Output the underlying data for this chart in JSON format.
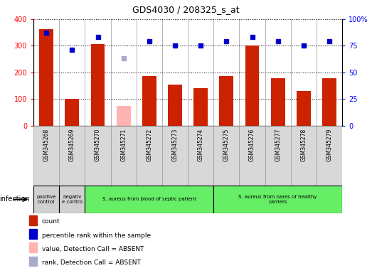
{
  "title": "GDS4030 / 208325_s_at",
  "samples": [
    "GSM345268",
    "GSM345269",
    "GSM345270",
    "GSM345271",
    "GSM345272",
    "GSM345273",
    "GSM345274",
    "GSM345275",
    "GSM345276",
    "GSM345277",
    "GSM345278",
    "GSM345279"
  ],
  "bar_values": [
    362,
    100,
    305,
    null,
    185,
    155,
    140,
    187,
    302,
    178,
    130,
    178
  ],
  "bar_absent_values": [
    null,
    null,
    null,
    75,
    null,
    null,
    null,
    null,
    null,
    null,
    null,
    null
  ],
  "bar_color_present": "#cc2200",
  "bar_color_absent": "#ffb3b3",
  "rank_values": [
    87,
    71,
    83,
    null,
    79,
    75,
    75,
    79,
    83,
    79,
    75,
    79
  ],
  "rank_absent_values": [
    null,
    null,
    null,
    63,
    null,
    null,
    null,
    null,
    null,
    null,
    null,
    null
  ],
  "rank_color_present": "#0000cc",
  "rank_color_absent": "#aaaacc",
  "ylim_left": [
    0,
    400
  ],
  "ylim_right": [
    0,
    100
  ],
  "yticks_left": [
    0,
    100,
    200,
    300,
    400
  ],
  "yticks_right": [
    0,
    25,
    50,
    75,
    100
  ],
  "ytick_labels_right": [
    "0",
    "25",
    "50",
    "75",
    "100%"
  ],
  "groups": [
    {
      "label": "positive\ncontrol",
      "start": 0,
      "end": 1,
      "color": "#d0d0d0"
    },
    {
      "label": "negativ\ne contro",
      "start": 1,
      "end": 2,
      "color": "#d0d0d0"
    },
    {
      "label": "S. aureus from blood of septic patient",
      "start": 2,
      "end": 7,
      "color": "#66ee66"
    },
    {
      "label": "S. aureus from nares of healthy\ncarriers",
      "start": 7,
      "end": 12,
      "color": "#66ee66"
    }
  ],
  "infection_label": "infection",
  "legend_items": [
    {
      "color": "#cc2200",
      "label": "count",
      "marker": "square"
    },
    {
      "color": "#0000cc",
      "label": "percentile rank within the sample",
      "marker": "square"
    },
    {
      "color": "#ffb3b3",
      "label": "value, Detection Call = ABSENT",
      "marker": "square"
    },
    {
      "color": "#aaaacc",
      "label": "rank, Detection Call = ABSENT",
      "marker": "square"
    }
  ],
  "bar_width": 0.55,
  "rank_marker_size": 5,
  "col_bg_color": "#d8d8d8"
}
